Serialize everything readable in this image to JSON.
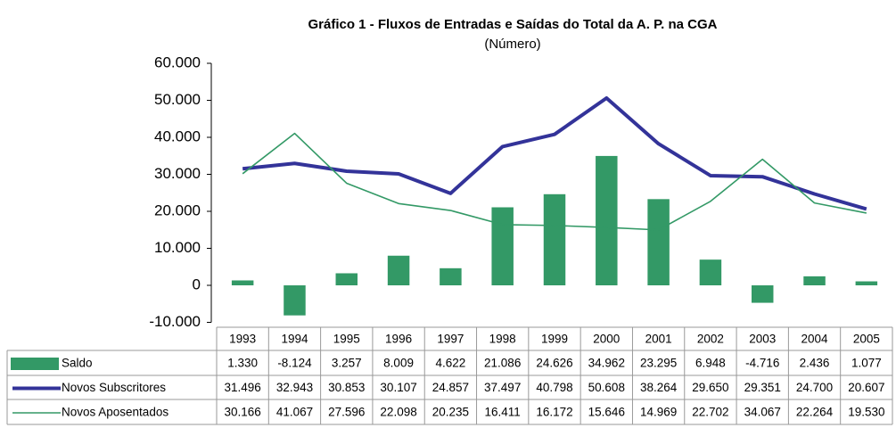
{
  "chart_data": {
    "type": "combo",
    "title": "Gráfico 1 - Fluxos de Entradas e Saídas do Total da A. P. na CGA",
    "subtitle": "(Número)",
    "categories": [
      "1993",
      "1994",
      "1995",
      "1996",
      "1997",
      "1998",
      "1999",
      "2000",
      "2001",
      "2002",
      "2003",
      "2004",
      "2005"
    ],
    "ylim": [
      -10000,
      60000
    ],
    "yticks": [
      {
        "value": -10000,
        "label": "-10.000"
      },
      0,
      {
        "value": 10000,
        "label": "10.000"
      },
      {
        "value": 20000,
        "label": "20.000"
      },
      {
        "value": 30000,
        "label": "30.000"
      },
      {
        "value": 40000,
        "label": "40.000"
      },
      {
        "value": 50000,
        "label": "50.000"
      },
      {
        "value": 60000,
        "label": "60.000"
      }
    ],
    "series": [
      {
        "name": "Saldo",
        "type": "bar",
        "color": "#339966",
        "values": [
          1330,
          -8124,
          3257,
          8009,
          4622,
          21086,
          24626,
          34962,
          23295,
          6948,
          -4716,
          2436,
          1077
        ],
        "value_labels": [
          "1.330",
          "-8.124",
          "3.257",
          "8.009",
          "4.622",
          "21.086",
          "24.626",
          "34.962",
          "23.295",
          "6.948",
          "-4.716",
          "2.436",
          "1.077"
        ]
      },
      {
        "name": "Novos Subscritores",
        "type": "line",
        "color": "#333399",
        "values": [
          31496,
          32943,
          30853,
          30107,
          24857,
          37497,
          40798,
          50608,
          38264,
          29650,
          29351,
          24700,
          20607
        ],
        "value_labels": [
          "31.496",
          "32.943",
          "30.853",
          "30.107",
          "24.857",
          "37.497",
          "40.798",
          "50.608",
          "38.264",
          "29.650",
          "29.351",
          "24.700",
          "20.607"
        ]
      },
      {
        "name": "Novos Aposentados",
        "type": "line",
        "color": "#339966",
        "values": [
          30166,
          41067,
          27596,
          22098,
          20235,
          16411,
          16172,
          15646,
          14969,
          22702,
          34067,
          22264,
          19530
        ],
        "value_labels": [
          "30.166",
          "41.067",
          "27.596",
          "22.098",
          "20.235",
          "16.411",
          "16.172",
          "15.646",
          "14.969",
          "22.702",
          "34.067",
          "22.264",
          "19.530"
        ]
      }
    ]
  }
}
